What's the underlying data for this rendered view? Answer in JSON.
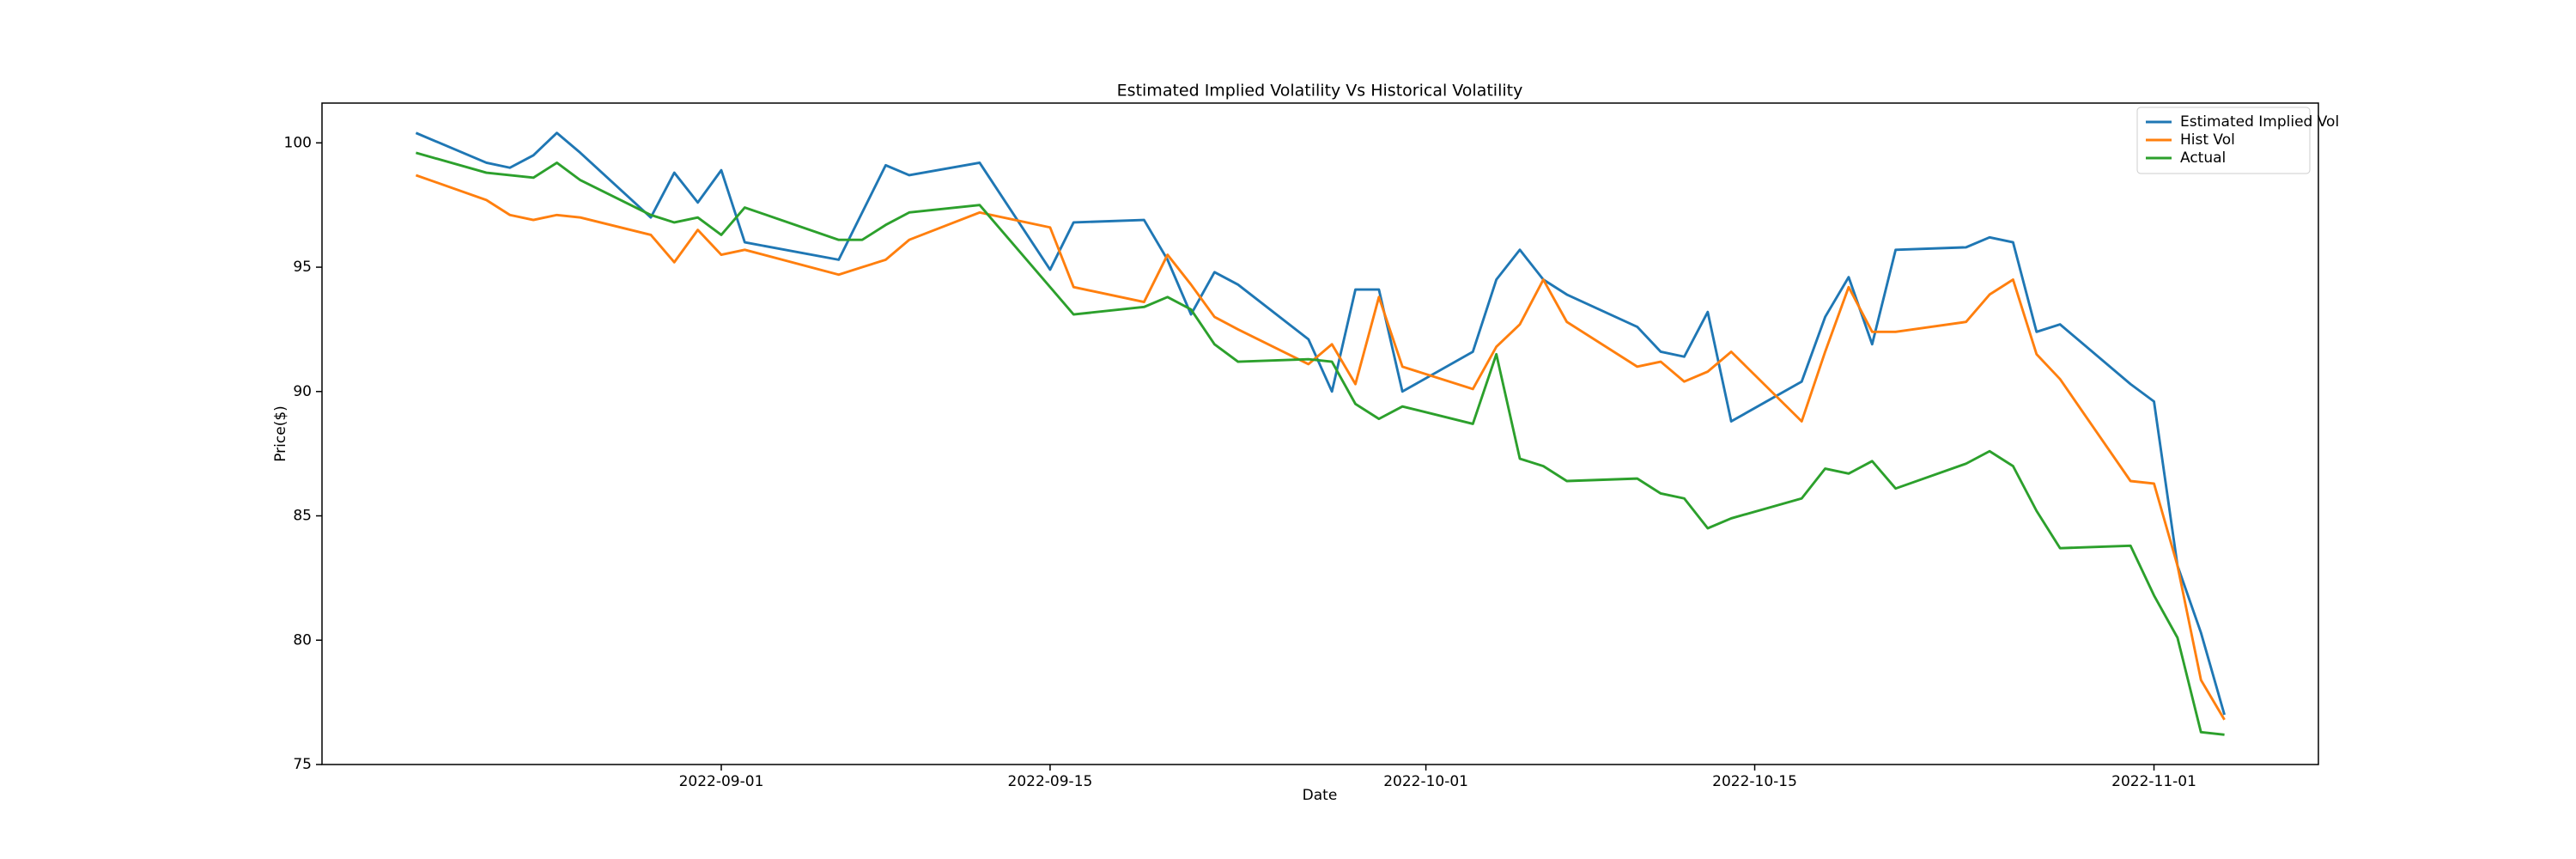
{
  "chart_data": {
    "type": "line",
    "title": "Estimated Implied Volatility Vs Historical Volatility",
    "xlabel": "Date",
    "ylabel": "Price($)",
    "x": [
      "2022-08-19",
      "2022-08-22",
      "2022-08-23",
      "2022-08-24",
      "2022-08-25",
      "2022-08-26",
      "2022-08-29",
      "2022-08-30",
      "2022-08-31",
      "2022-09-01",
      "2022-09-02",
      "2022-09-06",
      "2022-09-07",
      "2022-09-08",
      "2022-09-09",
      "2022-09-12",
      "2022-09-15",
      "2022-09-16",
      "2022-09-19",
      "2022-09-20",
      "2022-09-21",
      "2022-09-22",
      "2022-09-23",
      "2022-09-26",
      "2022-09-27",
      "2022-09-28",
      "2022-09-29",
      "2022-09-30",
      "2022-10-03",
      "2022-10-04",
      "2022-10-05",
      "2022-10-06",
      "2022-10-07",
      "2022-10-10",
      "2022-10-11",
      "2022-10-12",
      "2022-10-13",
      "2022-10-14",
      "2022-10-17",
      "2022-10-18",
      "2022-10-19",
      "2022-10-20",
      "2022-10-21",
      "2022-10-24",
      "2022-10-25",
      "2022-10-26",
      "2022-10-27",
      "2022-10-28",
      "2022-10-31",
      "2022-11-01",
      "2022-11-02",
      "2022-11-03",
      "2022-11-04"
    ],
    "series": [
      {
        "name": "Estimated Implied Vol",
        "color": "#1f77b4",
        "values": [
          100.4,
          99.2,
          99.0,
          99.5,
          100.4,
          99.6,
          97.0,
          98.8,
          97.6,
          98.9,
          96.0,
          95.3,
          97.2,
          99.1,
          98.7,
          99.2,
          94.9,
          96.8,
          96.9,
          95.3,
          93.1,
          94.8,
          94.3,
          92.1,
          90.0,
          94.1,
          94.1,
          90.0,
          91.6,
          94.5,
          95.7,
          94.5,
          93.9,
          92.6,
          91.6,
          91.4,
          93.2,
          88.8,
          90.4,
          93.0,
          94.6,
          91.9,
          95.7,
          95.8,
          96.2,
          96.0,
          92.4,
          92.7,
          90.3,
          89.6,
          83.0,
          80.3,
          77.0
        ]
      },
      {
        "name": "Hist Vol",
        "color": "#ff7f0e",
        "values": [
          98.7,
          97.7,
          97.1,
          96.9,
          97.1,
          97.0,
          96.3,
          95.2,
          96.5,
          95.5,
          95.7,
          94.7,
          95.0,
          95.3,
          96.1,
          97.2,
          96.6,
          94.2,
          93.6,
          95.5,
          94.3,
          93.0,
          92.5,
          91.1,
          91.9,
          90.3,
          93.8,
          91.0,
          90.1,
          91.8,
          92.7,
          94.5,
          92.8,
          91.0,
          91.2,
          90.4,
          90.8,
          91.6,
          88.8,
          91.6,
          94.2,
          92.4,
          92.4,
          92.8,
          93.9,
          94.5,
          91.5,
          90.5,
          86.4,
          86.3,
          83.0,
          78.4,
          76.8
        ]
      },
      {
        "name": "Actual",
        "color": "#2ca02c",
        "values": [
          99.6,
          98.8,
          98.7,
          98.6,
          99.2,
          98.5,
          97.1,
          96.8,
          97.0,
          96.3,
          97.4,
          96.1,
          96.1,
          96.7,
          97.2,
          97.5,
          94.2,
          93.1,
          93.4,
          93.8,
          93.3,
          91.9,
          91.2,
          91.3,
          91.2,
          89.5,
          88.9,
          89.4,
          88.7,
          91.5,
          87.3,
          87.0,
          86.4,
          86.5,
          85.9,
          85.7,
          84.5,
          84.9,
          85.7,
          86.9,
          86.7,
          87.2,
          86.1,
          87.1,
          87.6,
          87.0,
          85.2,
          83.7,
          83.8,
          81.8,
          80.1,
          76.3,
          76.2
        ]
      }
    ],
    "xlim": [
      "2022-08-15",
      "2022-11-08"
    ],
    "xticks": [
      "2022-09-01",
      "2022-09-15",
      "2022-10-01",
      "2022-10-15",
      "2022-11-01"
    ],
    "ylim": [
      75,
      101.6
    ],
    "yticks": [
      75,
      80,
      85,
      90,
      95,
      100
    ],
    "legend": "upper right"
  }
}
